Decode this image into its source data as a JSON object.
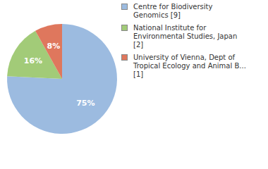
{
  "chart_data": {
    "type": "pie",
    "categories": [
      "Centre for Biodiversity Genomics [9]",
      "National Institute for Environmental Studies, Japan [2]",
      "University of Vienna, Dept of Tropical Ecology and Animal B... [1]"
    ],
    "values": [
      75,
      16,
      8
    ],
    "value_labels": [
      "75%",
      "16%",
      "8%"
    ],
    "data_labels": true,
    "colors": [
      "#9cbbe0",
      "#a2cb78",
      "#df775d"
    ],
    "legend": "right"
  }
}
